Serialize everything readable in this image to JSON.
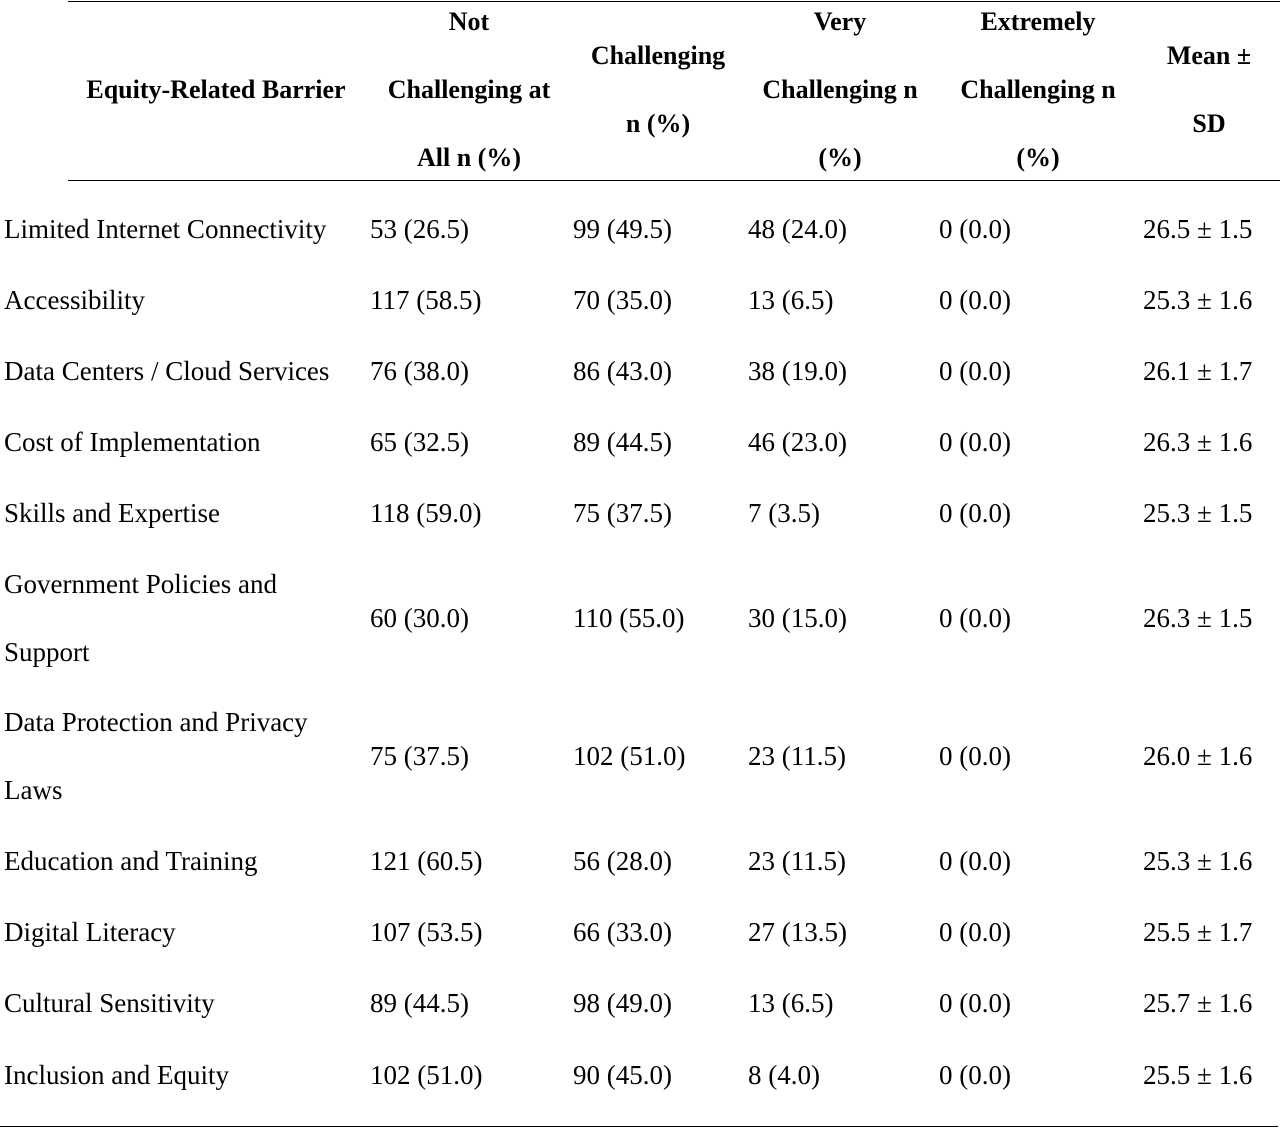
{
  "table": {
    "headers": [
      {
        "lines": [
          "Equity-Related Barrier"
        ]
      },
      {
        "lines": [
          "Not",
          "Challenging at",
          "All n (%)"
        ]
      },
      {
        "lines": [
          "Challenging",
          "n (%)"
        ]
      },
      {
        "lines": [
          "Very",
          "Challenging n",
          "(%)"
        ]
      },
      {
        "lines": [
          "Extremely",
          "Challenging n",
          "(%)"
        ]
      },
      {
        "lines": [
          "Mean ±",
          "SD"
        ]
      }
    ],
    "rows": [
      {
        "barrier": [
          "Limited Internet Connectivity"
        ],
        "not": "53 (26.5)",
        "challenging": "99 (49.5)",
        "very": "48 (24.0)",
        "extremely": "0 (0.0)",
        "mean": "26.5 ± 1.5"
      },
      {
        "barrier": [
          "Accessibility"
        ],
        "not": "117 (58.5)",
        "challenging": "70 (35.0)",
        "very": "13 (6.5)",
        "extremely": "0 (0.0)",
        "mean": "25.3 ± 1.6"
      },
      {
        "barrier": [
          "Data Centers / Cloud Services"
        ],
        "not": "76 (38.0)",
        "challenging": "86 (43.0)",
        "very": "38 (19.0)",
        "extremely": "0 (0.0)",
        "mean": "26.1 ± 1.7"
      },
      {
        "barrier": [
          "Cost of Implementation"
        ],
        "not": "65 (32.5)",
        "challenging": "89 (44.5)",
        "very": "46 (23.0)",
        "extremely": "0 (0.0)",
        "mean": "26.3 ± 1.6"
      },
      {
        "barrier": [
          "Skills and Expertise"
        ],
        "not": "118 (59.0)",
        "challenging": "75 (37.5)",
        "very": "7 (3.5)",
        "extremely": "0 (0.0)",
        "mean": "25.3 ± 1.5"
      },
      {
        "barrier": [
          "Government Policies and",
          "Support"
        ],
        "not": "60 (30.0)",
        "challenging": "110 (55.0)",
        "very": "30 (15.0)",
        "extremely": "0 (0.0)",
        "mean": "26.3 ± 1.5"
      },
      {
        "barrier": [
          "Data Protection and Privacy",
          "Laws"
        ],
        "not": "75 (37.5)",
        "challenging": "102 (51.0)",
        "very": "23 (11.5)",
        "extremely": "0 (0.0)",
        "mean": "26.0 ± 1.6"
      },
      {
        "barrier": [
          "Education and Training"
        ],
        "not": "121 (60.5)",
        "challenging": "56 (28.0)",
        "very": "23 (11.5)",
        "extremely": "0 (0.0)",
        "mean": "25.3 ± 1.6"
      },
      {
        "barrier": [
          "Digital Literacy"
        ],
        "not": "107 (53.5)",
        "challenging": "66 (33.0)",
        "very": "27 (13.5)",
        "extremely": "0 (0.0)",
        "mean": "25.5 ± 1.7"
      },
      {
        "barrier": [
          "Cultural Sensitivity"
        ],
        "not": "89 (44.5)",
        "challenging": "98 (49.0)",
        "very": "13 (6.5)",
        "extremely": "0 (0.0)",
        "mean": "25.7 ± 1.6"
      },
      {
        "barrier": [
          "Inclusion and Equity"
        ],
        "not": "102 (51.0)",
        "challenging": "90 (45.0)",
        "very": "8 (4.0)",
        "extremely": "0 (0.0)",
        "mean": "25.5 ± 1.6"
      }
    ]
  }
}
